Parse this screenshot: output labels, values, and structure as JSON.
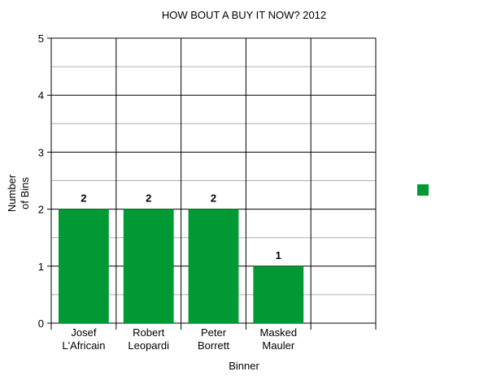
{
  "chart_data": {
    "type": "bar",
    "title": "HOW BOUT A BUY IT NOW? 2012",
    "xlabel": "Binner",
    "ylabel": [
      "Number",
      "of Bins"
    ],
    "categories": [
      [
        "Josef",
        "L'Africain"
      ],
      [
        "Robert",
        "Leopardi"
      ],
      [
        "Peter",
        "Borrett"
      ],
      [
        "Masked",
        "Mauler"
      ],
      [
        "",
        ""
      ]
    ],
    "values": [
      2,
      2,
      2,
      1,
      null
    ],
    "data_labels": [
      "2",
      "2",
      "2",
      "1",
      ""
    ],
    "ylim": [
      0,
      5
    ],
    "yticks": [
      "0",
      "1",
      "2",
      "3",
      "4",
      "5"
    ],
    "grid": true,
    "minor_grid": true,
    "legend": {
      "placement": "right",
      "entries": [
        ""
      ]
    },
    "colors": {
      "bar": "#009933",
      "major_grid": "#000000",
      "minor_grid": "#b0b0b0"
    }
  }
}
